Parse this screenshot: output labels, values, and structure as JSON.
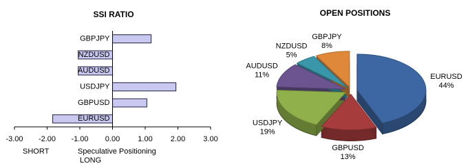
{
  "chart_data": [
    {
      "type": "bar",
      "orientation": "horizontal",
      "title": "SSI RATIO",
      "categories": [
        "EURUSD",
        "GBPUSD",
        "USDJPY",
        "AUDUSD",
        "NZDUSD",
        "GBPJPY"
      ],
      "values": [
        -1.83,
        1.05,
        1.94,
        -1.05,
        -1.05,
        1.18
      ],
      "color": "#c8c8f0",
      "xlim": [
        -3,
        3
      ],
      "xticks": [
        {
          "value": -3,
          "label": "-3.00"
        },
        {
          "value": -2,
          "label": "-2.00"
        },
        {
          "value": -1,
          "label": "-1.00"
        },
        {
          "value": 0,
          "label": "0.00"
        },
        {
          "value": 1,
          "label": "1.00"
        },
        {
          "value": 2,
          "label": "2.00"
        },
        {
          "value": 3,
          "label": "3.00"
        }
      ],
      "short_label": "SHORT",
      "short_color": "#cc2222",
      "xlabel": "Speculative Positioning",
      "long_label": "LONG",
      "long_color": "#22aa22"
    },
    {
      "type": "pie",
      "title": "OPEN POSITIONS",
      "categories": [
        "EURUSD",
        "GBPUSD",
        "USDJPY",
        "AUDUSD",
        "NZDUSD",
        "GBPJPY"
      ],
      "values": [
        44,
        13,
        19,
        11,
        5,
        8
      ],
      "value_labels": [
        "44%",
        "13%",
        "19%",
        "11%",
        "5%",
        "8%"
      ],
      "colors": [
        "#3d67a3",
        "#a63c3c",
        "#8fb04a",
        "#6c5491",
        "#3a97aa",
        "#e0883a"
      ]
    }
  ]
}
